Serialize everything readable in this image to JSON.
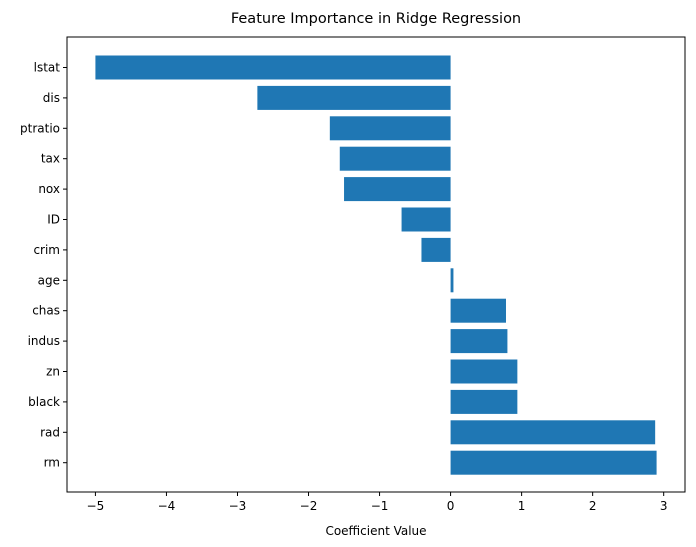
{
  "chart_data": {
    "type": "bar",
    "orientation": "horizontal",
    "title": "Feature Importance in Ridge Regression",
    "xlabel": "Coefficient Value",
    "ylabel": "",
    "categories": [
      "lstat",
      "dis",
      "ptratio",
      "tax",
      "nox",
      "ID",
      "crim",
      "age",
      "chas",
      "indus",
      "zn",
      "black",
      "rad",
      "rm"
    ],
    "values": [
      -5.0,
      -2.72,
      -1.7,
      -1.56,
      -1.5,
      -0.69,
      -0.41,
      0.04,
      0.78,
      0.8,
      0.94,
      0.94,
      2.88,
      2.9
    ],
    "xlim": [
      -5.4,
      3.3
    ],
    "xticks": [
      -5,
      -4,
      -3,
      -2,
      -1,
      0,
      1,
      2,
      3
    ],
    "xtick_labels": [
      "−5",
      "−4",
      "−3",
      "−2",
      "−1",
      "0",
      "1",
      "2",
      "3"
    ],
    "bar_color": "#1f77b4",
    "grid": false,
    "legend": "none"
  }
}
